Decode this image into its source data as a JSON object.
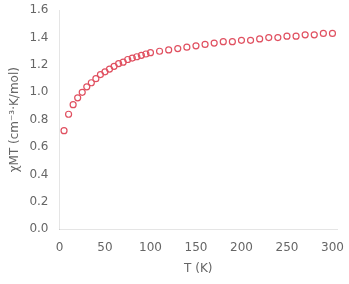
{
  "chart_data": {
    "type": "scatter",
    "x": [
      5,
      10,
      15,
      20,
      25,
      30,
      35,
      40,
      45,
      50,
      55,
      60,
      65,
      70,
      75,
      80,
      85,
      90,
      95,
      100,
      110,
      120,
      130,
      140,
      150,
      160,
      170,
      180,
      190,
      200,
      210,
      220,
      230,
      240,
      250,
      260,
      270,
      280,
      290,
      300
    ],
    "values": [
      0.72,
      0.84,
      0.91,
      0.96,
      1.0,
      1.04,
      1.07,
      1.1,
      1.13,
      1.15,
      1.17,
      1.19,
      1.21,
      1.22,
      1.24,
      1.25,
      1.26,
      1.27,
      1.28,
      1.29,
      1.3,
      1.31,
      1.32,
      1.33,
      1.34,
      1.35,
      1.36,
      1.37,
      1.37,
      1.38,
      1.38,
      1.39,
      1.4,
      1.4,
      1.41,
      1.41,
      1.42,
      1.42,
      1.43,
      1.43
    ],
    "color": "#e05060",
    "marker": "circle",
    "xlabel": "T (K)",
    "ylabel": "χMT (cm⁻³·K/mol)",
    "xlim": [
      0,
      305
    ],
    "ylim": [
      0.0,
      1.6
    ],
    "xticks": [
      0,
      50,
      100,
      150,
      200,
      250,
      300
    ],
    "yticks": [
      {
        "value": 0,
        "label": "0.0"
      },
      0.2,
      0.4,
      0.6,
      0.8,
      {
        "value": 1,
        "label": "1.0"
      },
      1.2,
      1.4,
      1.6
    ],
    "grid": false
  }
}
